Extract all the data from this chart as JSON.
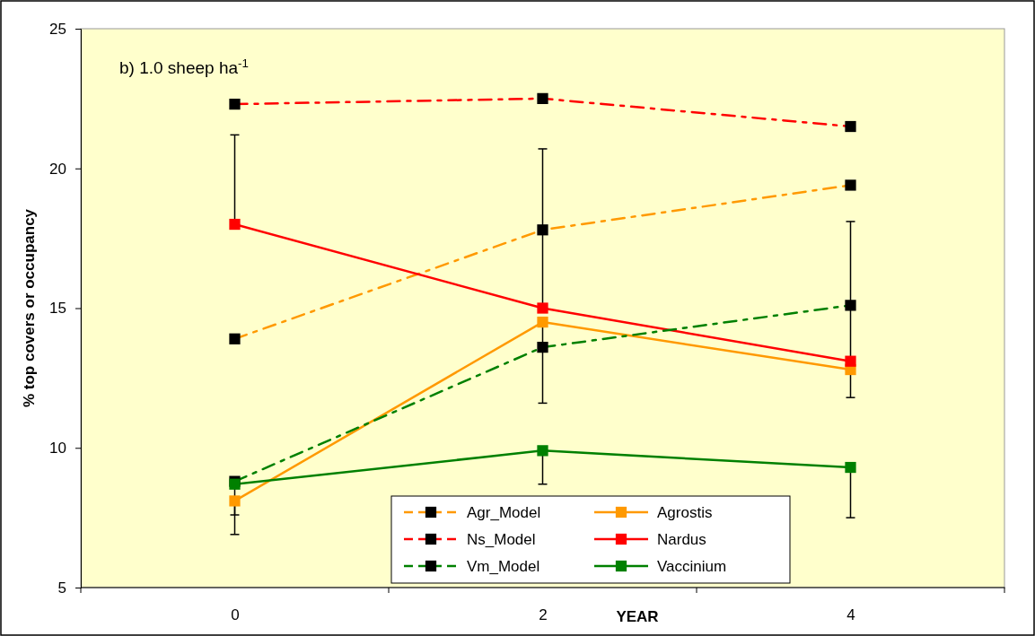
{
  "chart_data": {
    "type": "line",
    "annotations": [
      "b) 1.0 sheep ha$^{-1}$"
    ],
    "xlabel": "YEAR",
    "ylabel": "% top covers or occupancy",
    "categories": [
      "0",
      "2",
      "4"
    ],
    "ylim": [
      5,
      25
    ],
    "yticks": [
      5,
      10,
      15,
      20,
      25
    ],
    "grid": false,
    "legend": "bottom",
    "marker": "square",
    "series": [
      {
        "name": "Agr_Model",
        "color": "#ff9900",
        "line_style": "dashed",
        "values": [
          13.9,
          17.8,
          19.4
        ]
      },
      {
        "name": "Agrostis",
        "color": "#ff9900",
        "line_style": "solid",
        "values": [
          8.1,
          14.5,
          12.8
        ],
        "errors": [
          [
            6.9,
            8.1
          ],
          [
            11.6,
            14.5
          ],
          [
            11.8,
            12.8
          ]
        ]
      },
      {
        "name": "Ns_Model",
        "color": "#ff0000",
        "line_style": "dashed",
        "values": [
          22.3,
          22.5,
          21.5
        ]
      },
      {
        "name": "Nardus",
        "color": "#ff0000",
        "line_style": "solid",
        "values": [
          18.0,
          15.0,
          13.1
        ],
        "errors": [
          [
            18.0,
            21.2
          ],
          [
            15.0,
            20.7
          ],
          [
            13.1,
            18.1
          ]
        ]
      },
      {
        "name": "Vm_Model",
        "color": "#008000",
        "line_style": "dashed",
        "values": [
          8.8,
          13.6,
          15.1
        ]
      },
      {
        "name": "Vaccinium",
        "color": "#008000",
        "line_style": "solid",
        "values": [
          8.7,
          9.9,
          9.3
        ],
        "errors": [
          [
            7.6,
            8.7
          ],
          [
            8.7,
            9.9
          ],
          [
            7.5,
            9.3
          ]
        ]
      }
    ]
  }
}
